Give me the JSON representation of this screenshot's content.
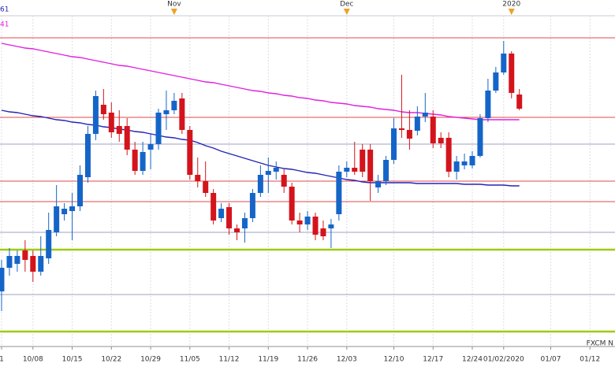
{
  "chart_data": {
    "type": "candlestick",
    "ylim": [
      26,
      466
    ],
    "grid": true,
    "up_color": "#1565c8",
    "down_color": "#d4141c",
    "categories": [
      "1",
      null,
      null,
      null,
      "10/08",
      null,
      null,
      null,
      null,
      "10/15",
      null,
      null,
      null,
      null,
      "10/22",
      null,
      null,
      null,
      null,
      "10/29",
      null,
      null,
      null,
      null,
      "11/05",
      null,
      null,
      null,
      null,
      "11/12",
      null,
      null,
      null,
      null,
      "11/19",
      null,
      null,
      null,
      null,
      "11/26",
      null,
      null,
      null,
      null,
      "12/03",
      null,
      null,
      null,
      null,
      null,
      "12/10",
      null,
      null,
      null,
      null,
      "12/17",
      null,
      null,
      null,
      null,
      "12/24",
      null,
      null,
      null,
      "01/02/2020",
      null,
      null,
      null,
      null,
      null,
      "01/07",
      null,
      null,
      null,
      null,
      "01/12",
      null,
      null
    ],
    "top_labels": [
      null,
      null,
      null,
      null,
      null,
      null,
      null,
      null,
      null,
      null,
      null,
      null,
      null,
      null,
      null,
      null,
      null,
      null,
      null,
      null,
      null,
      null,
      "Nov",
      null,
      null,
      null,
      null,
      null,
      null,
      null,
      null,
      null,
      null,
      null,
      null,
      null,
      null,
      null,
      null,
      null,
      null,
      null,
      null,
      null,
      "Dec",
      null,
      null,
      null,
      null,
      null,
      null,
      null,
      null,
      null,
      null,
      null,
      null,
      null,
      null,
      null,
      null,
      null,
      null,
      null,
      null,
      "2020",
      null,
      null,
      null,
      null,
      null,
      null,
      null,
      null,
      null,
      null,
      null,
      null
    ],
    "open": [
      96,
      126,
      131,
      148,
      141,
      121,
      138,
      171,
      194,
      198,
      204,
      241,
      296,
      333,
      323,
      306,
      306,
      276,
      249,
      276,
      283,
      321,
      326,
      341,
      301,
      244,
      236,
      221,
      189,
      203,
      176,
      176,
      189,
      221,
      244,
      248,
      244,
      229,
      186,
      181,
      191,
      176,
      176,
      194,
      248,
      253,
      276,
      276,
      228,
      236,
      263,
      303,
      301,
      300,
      318,
      318,
      291,
      291,
      248,
      256,
      256,
      268,
      316,
      351,
      374,
      398,
      346,
      null,
      null,
      null,
      null,
      null,
      null,
      null,
      null,
      null,
      null,
      null
    ],
    "high": [
      136,
      151,
      148,
      161,
      148,
      166,
      196,
      231,
      208,
      221,
      256,
      306,
      351,
      353,
      336,
      326,
      316,
      286,
      286,
      296,
      328,
      351,
      348,
      348,
      306,
      266,
      261,
      226,
      208,
      208,
      181,
      196,
      226,
      256,
      266,
      261,
      251,
      234,
      196,
      198,
      196,
      186,
      188,
      256,
      261,
      286,
      283,
      283,
      244,
      268,
      316,
      371,
      326,
      331,
      348,
      326,
      298,
      298,
      268,
      271,
      274,
      321,
      366,
      381,
      414,
      401,
      353,
      null,
      null,
      null,
      null,
      null,
      null,
      null,
      null,
      null,
      null,
      null
    ],
    "low": [
      71,
      116,
      121,
      121,
      108,
      116,
      131,
      166,
      186,
      161,
      198,
      234,
      288,
      314,
      291,
      286,
      269,
      244,
      244,
      251,
      276,
      301,
      321,
      296,
      238,
      228,
      216,
      181,
      184,
      168,
      161,
      158,
      184,
      216,
      221,
      238,
      221,
      181,
      171,
      174,
      161,
      161,
      151,
      186,
      241,
      244,
      241,
      211,
      221,
      231,
      258,
      291,
      276,
      294,
      311,
      278,
      278,
      241,
      238,
      251,
      252,
      266,
      311,
      348,
      371,
      341,
      326,
      null,
      null,
      null,
      null,
      null,
      null,
      null,
      null,
      null,
      null,
      null
    ],
    "close": [
      126,
      141,
      141,
      136,
      121,
      141,
      174,
      204,
      201,
      204,
      244,
      296,
      344,
      321,
      298,
      296,
      276,
      249,
      273,
      283,
      323,
      326,
      338,
      301,
      244,
      236,
      221,
      186,
      201,
      176,
      171,
      189,
      221,
      244,
      249,
      253,
      229,
      186,
      181,
      191,
      168,
      166,
      181,
      248,
      253,
      248,
      248,
      236,
      236,
      263,
      303,
      301,
      290,
      318,
      323,
      284,
      284,
      248,
      261,
      261,
      268,
      316,
      351,
      374,
      398,
      348,
      328,
      null,
      null,
      null,
      null,
      null,
      null,
      null,
      null,
      null,
      null,
      null
    ],
    "series": [
      {
        "name": "61",
        "color": "#2424b8",
        "values": [
          326,
          324,
          323,
          321,
          319,
          318,
          316,
          314,
          313,
          311,
          310,
          308,
          307,
          305,
          304,
          302,
          301,
          299,
          298,
          296,
          294,
          292,
          291,
          289,
          288,
          285,
          281,
          278,
          274,
          271,
          268,
          265,
          262,
          259,
          256,
          254,
          252,
          251,
          249,
          247,
          246,
          244,
          242,
          240,
          238,
          237,
          235,
          234,
          234,
          234,
          234,
          234,
          234,
          233,
          233,
          233,
          233,
          233,
          233,
          232,
          232,
          232,
          231,
          231,
          231,
          230,
          230,
          null,
          null,
          null,
          null,
          null,
          null,
          null,
          null,
          null,
          null,
          null
        ]
      },
      {
        "name": "41",
        "color": "#e020e0",
        "values": [
          411,
          409,
          407,
          405,
          404,
          402,
          400,
          398,
          396,
          394,
          393,
          391,
          389,
          387,
          385,
          383,
          382,
          380,
          378,
          376,
          374,
          372,
          370,
          368,
          366,
          364,
          362,
          361,
          359,
          357,
          355,
          353,
          351,
          350,
          348,
          347,
          345,
          344,
          342,
          341,
          339,
          338,
          336,
          335,
          334,
          332,
          331,
          330,
          328,
          327,
          326,
          324,
          323,
          323,
          322,
          321,
          320,
          318,
          317,
          316,
          315,
          314,
          314,
          314,
          314,
          314,
          314,
          null,
          null,
          null,
          null,
          null,
          null,
          null,
          null,
          null,
          null,
          null
        ]
      }
    ],
    "hlines": [
      {
        "value": 418,
        "color": "#e04848"
      },
      {
        "value": 317,
        "color": "#e04848"
      },
      {
        "value": 236,
        "color": "#e04848"
      },
      {
        "value": 210,
        "color": "#e04848"
      },
      {
        "value": 283,
        "color": "#a0a0c0"
      },
      {
        "value": 171,
        "color": "#a0a0c0"
      },
      {
        "value": 92,
        "color": "#a0a0c0"
      },
      {
        "value": 149,
        "color": "#9ccc10"
      },
      {
        "value": 45,
        "color": "#9ccc10"
      }
    ],
    "watermark": "FXCM N"
  }
}
